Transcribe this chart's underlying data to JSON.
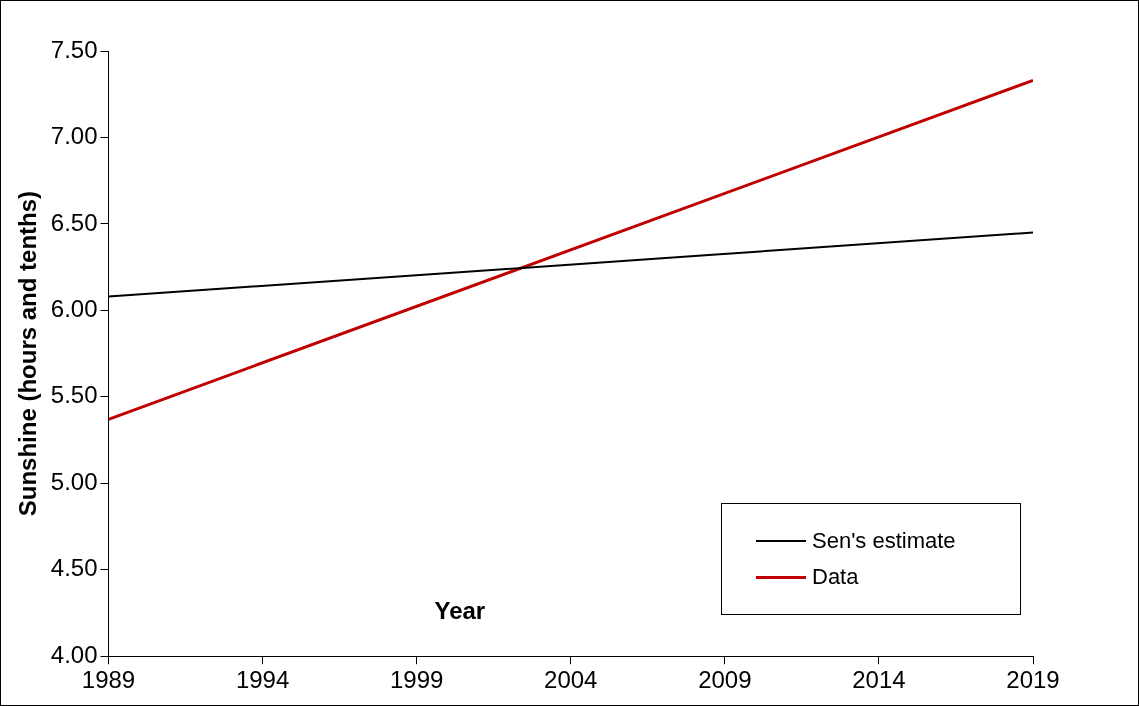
{
  "chart_data": {
    "type": "line",
    "xlabel": "Year",
    "ylabel": "Sunshine (hours and tenths)",
    "x": [
      1989,
      2019
    ],
    "series": [
      {
        "name": "Sen's estimate",
        "color": "#000000",
        "values": [
          6.08,
          6.45
        ]
      },
      {
        "name": "Data",
        "color": "#c00000",
        "values": [
          5.37,
          7.33
        ]
      }
    ],
    "xlim": [
      1989,
      2019
    ],
    "xticks": [
      1989,
      1994,
      1999,
      2004,
      2009,
      2014,
      2019
    ],
    "ylim": [
      4,
      7.5
    ],
    "yticks": [
      {
        "value": 4,
        "label": "4.00"
      },
      {
        "value": 4.5,
        "label": "4.50"
      },
      {
        "value": 5,
        "label": "5.00"
      },
      {
        "value": 5.5,
        "label": "5.50"
      },
      {
        "value": 6,
        "label": "6.00"
      },
      {
        "value": 6.5,
        "label": "6.50"
      },
      {
        "value": 7,
        "label": "7.00"
      },
      {
        "value": 7.5,
        "label": "7.50"
      }
    ],
    "grid": false,
    "legend": "bottom right",
    "marker": "none",
    "line_style": "solid"
  }
}
